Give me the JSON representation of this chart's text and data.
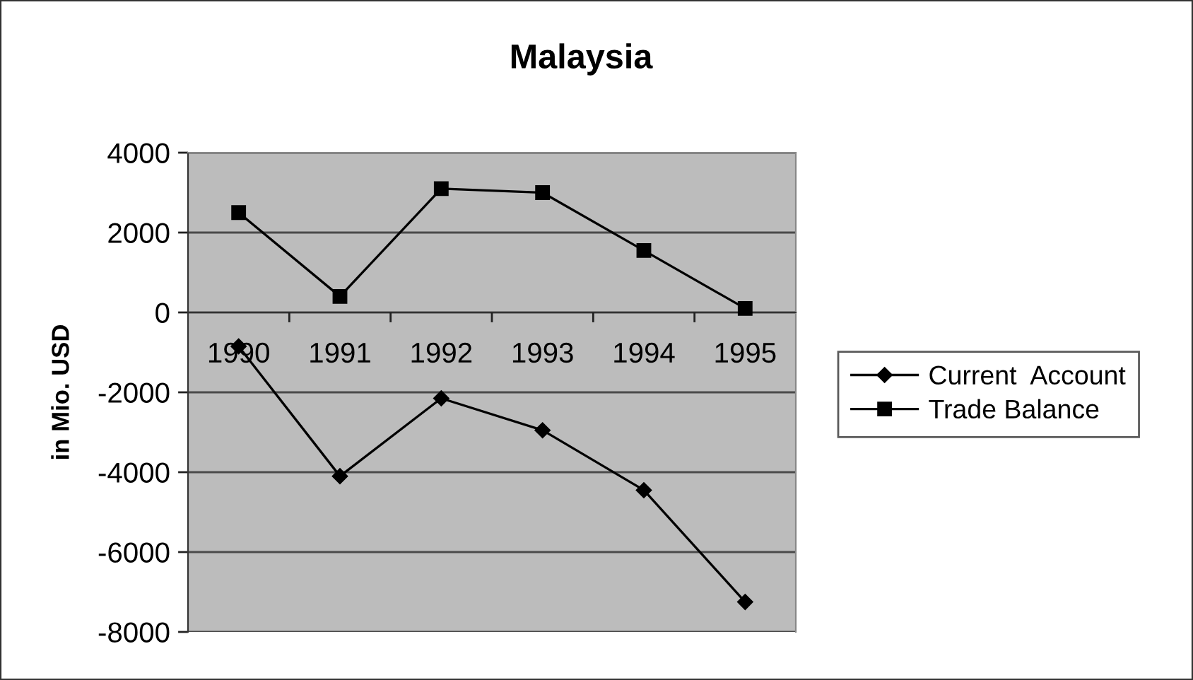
{
  "chart_data": {
    "type": "line",
    "title": "Malaysia",
    "ylabel": "in Mio. USD",
    "categories": [
      "1990",
      "1991",
      "1992",
      "1993",
      "1994",
      "1995"
    ],
    "series": [
      {
        "name": "Current  Account",
        "color": "#000000",
        "marker": "diamond",
        "values": [
          -850,
          -4100,
          -2150,
          -2950,
          -4450,
          -7250
        ]
      },
      {
        "name": "Trade Balance",
        "color": "#000000",
        "marker": "square",
        "values": [
          2500,
          400,
          3100,
          3000,
          1550,
          100
        ]
      }
    ],
    "ylim": [
      -8000,
      4000
    ],
    "yticks": [
      -8000,
      -6000,
      -4000,
      -2000,
      0,
      2000,
      4000
    ],
    "grid": "y",
    "legend": "right"
  }
}
